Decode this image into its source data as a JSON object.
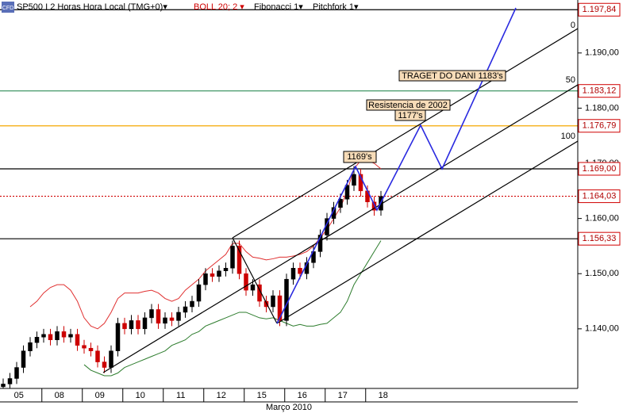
{
  "chart_data": {
    "type": "candlestick",
    "icon_label": "CFD",
    "title": "SP500 I 2 Horas Hora Local (TMG+0)▾",
    "indicators": [
      "BOLL 20; 2 ▾",
      "Fibonacci 1▾",
      "Pitchfork 1▾"
    ],
    "x_labels": [
      "05",
      "08",
      "09",
      "10",
      "11",
      "12",
      "15",
      "16",
      "17",
      "18"
    ],
    "x_axis_label": "Março 2010",
    "candles_per_day": 6,
    "up_color": "#000000",
    "down_color": "#cc0000",
    "open": [
      1129.5,
      1130,
      1131,
      1133,
      1136,
      1137.5,
      1138.5,
      1139,
      1138,
      1139.5,
      1138.5,
      1139,
      1137,
      1136.5,
      1136,
      1134,
      1133,
      1136,
      1141,
      1140,
      1141.5,
      1140,
      1142,
      1143.5,
      1141,
      1142,
      1141.5,
      1143,
      1144,
      1145,
      1148,
      1150,
      1149.5,
      1150.5,
      1151,
      1155,
      1150,
      1147,
      1148,
      1145,
      1144,
      1146,
      1141.5,
      1149,
      1151,
      1150,
      1152,
      1154,
      1157,
      1160,
      1162,
      1163.5,
      1166,
      1168,
      1165,
      1163,
      1161.5
    ],
    "high": [
      1131,
      1132,
      1134,
      1137,
      1138.5,
      1139.5,
      1140,
      1140,
      1140.5,
      1140.5,
      1140,
      1140,
      1138,
      1137.5,
      1137,
      1135,
      1137,
      1142,
      1142,
      1142.5,
      1142.5,
      1143,
      1144.5,
      1144.5,
      1143,
      1143,
      1144,
      1145,
      1146,
      1149,
      1151,
      1151,
      1151.5,
      1152,
      1156,
      1156,
      1151,
      1149,
      1149,
      1146,
      1147,
      1147,
      1150,
      1152,
      1152,
      1153,
      1155,
      1158,
      1161,
      1163,
      1164.5,
      1167,
      1169.5,
      1169,
      1166,
      1164,
      1165
    ],
    "low": [
      1128.5,
      1129,
      1130,
      1132,
      1135,
      1136.5,
      1137.5,
      1137,
      1137,
      1137.5,
      1137.5,
      1136,
      1135.5,
      1135,
      1133,
      1132,
      1132,
      1135,
      1139,
      1139,
      1139,
      1139,
      1141,
      1140,
      1140,
      1140.5,
      1140.5,
      1142,
      1143,
      1144,
      1147,
      1148.5,
      1148.5,
      1149.5,
      1150,
      1149,
      1146,
      1146,
      1144,
      1143,
      1143,
      1140.5,
      1140.5,
      1148,
      1149,
      1149,
      1151,
      1153,
      1156,
      1159,
      1161,
      1162.5,
      1165,
      1164,
      1162,
      1160.5,
      1160.5
    ],
    "close": [
      1130,
      1131,
      1133,
      1136,
      1137.5,
      1138.5,
      1139,
      1138,
      1139.5,
      1138.5,
      1139,
      1137,
      1136.5,
      1136,
      1134,
      1133,
      1136,
      1141,
      1140,
      1141.5,
      1140,
      1142,
      1143.5,
      1141,
      1142,
      1141.5,
      1143,
      1144,
      1145,
      1148,
      1150,
      1149.5,
      1150.5,
      1151,
      1155,
      1150,
      1147,
      1148,
      1145,
      1144,
      1146,
      1141.5,
      1149,
      1151,
      1150,
      1152,
      1154,
      1157,
      1160,
      1162,
      1163.5,
      1166,
      1168,
      1165,
      1163,
      1161.5,
      1164
    ],
    "bollinger": {
      "upper_color": "#e03030",
      "lower_color": "#2e7d2e",
      "upper": [
        null,
        null,
        null,
        null,
        1144,
        1145,
        1146.5,
        1147.5,
        1148,
        1148,
        1147,
        1145,
        1142,
        1140.5,
        1140,
        1141,
        1143,
        1145.5,
        1146.5,
        1146.5,
        1146.5,
        1146.8,
        1147,
        1146.5,
        1145.5,
        1145,
        1145.5,
        1147,
        1148,
        1149,
        1150.5,
        1151.5,
        1152.5,
        1153.5,
        1155.5,
        1155.5,
        1154,
        1153,
        1152.8,
        1152.5,
        1152.7,
        1153,
        1153,
        1153.2,
        1153.5,
        1154,
        1155,
        1156.5,
        1158,
        1160,
        1162,
        1165,
        1169,
        1170.5,
        1170.5,
        1170,
        1169
      ],
      "lower": [
        null,
        null,
        null,
        null,
        null,
        null,
        null,
        null,
        null,
        null,
        null,
        null,
        1133.5,
        1132.5,
        1132,
        1131.5,
        1131.5,
        1132,
        1133,
        1133.5,
        1134,
        1134.5,
        1135,
        1135.5,
        1136,
        1137,
        1137.5,
        1138,
        1139,
        1139.5,
        1140.5,
        1141,
        1141.5,
        1142,
        1142.5,
        1143,
        1143,
        1142.5,
        1142,
        1141.8,
        1142,
        1141.5,
        1141,
        1140.5,
        1140.8,
        1140.5,
        1140.5,
        1140.8,
        1141,
        1142,
        1143,
        1145,
        1148,
        1150,
        1152,
        1154,
        1156
      ]
    },
    "ylim": [
      1129.2,
      1199.6
    ],
    "yticks": [
      {
        "value": 1140,
        "label": "1.140,00"
      },
      {
        "value": 1150,
        "label": "1.150,00"
      },
      {
        "value": 1160,
        "label": "1.160,00"
      },
      {
        "value": 1170,
        "label": "1.170,00"
      },
      {
        "value": 1180,
        "label": "1.180,00"
      },
      {
        "value": 1190,
        "label": "1.190,00"
      }
    ],
    "levels": [
      {
        "value": 1197.84,
        "label": "1.197,84",
        "color": "#000000"
      },
      {
        "value": 1183.12,
        "label": "1.183,12",
        "color": "#2e8b57"
      },
      {
        "value": 1176.79,
        "label": "1.176,79",
        "color": "#f5a800"
      },
      {
        "value": 1169.0,
        "label": "1.169,00",
        "color": "#000000"
      },
      {
        "value": 1164.03,
        "label": "1.164,03",
        "color": "#d00000",
        "dotted": true
      },
      {
        "value": 1156.33,
        "label": "1.156,33",
        "color": "#000000"
      }
    ],
    "fib_labels": [
      "0",
      "50",
      "100"
    ],
    "annotations": [
      "TRAGET DO DANI 1183's",
      "Resistencia de 2002",
      "1177's",
      "1169's"
    ]
  }
}
